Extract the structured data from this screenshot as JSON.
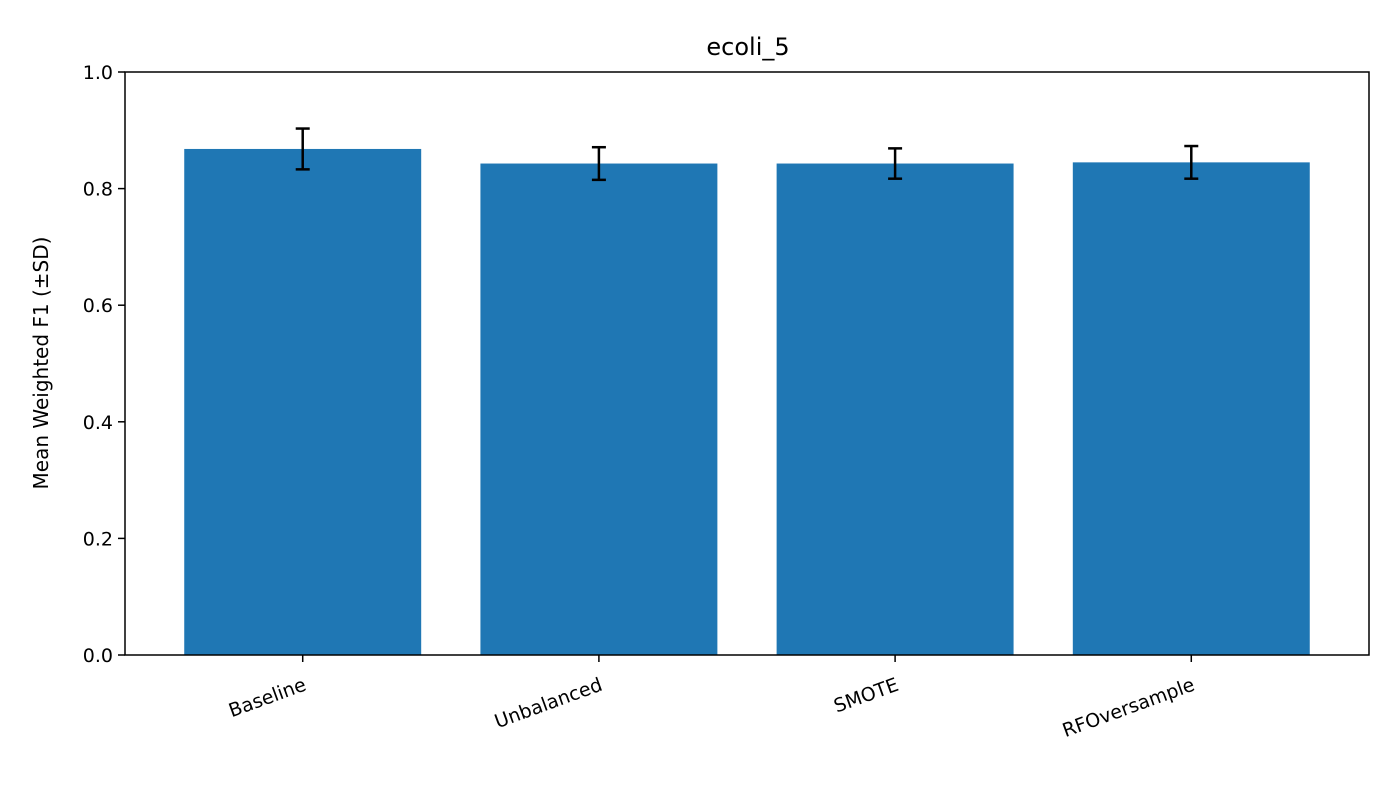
{
  "chart_data": {
    "type": "bar",
    "title": "ecoli_5",
    "xlabel": "",
    "ylabel": "Mean Weighted F1 (±SD)",
    "categories": [
      "Baseline",
      "Unbalanced",
      "SMOTE",
      "RFOversample"
    ],
    "values": [
      0.868,
      0.843,
      0.843,
      0.845
    ],
    "errors": [
      0.035,
      0.028,
      0.026,
      0.028
    ],
    "ylim": [
      0,
      1.0
    ],
    "yticks": [
      0.0,
      0.2,
      0.4,
      0.6,
      0.8,
      1.0
    ],
    "ytick_labels": [
      "0.0",
      "0.2",
      "0.4",
      "0.6",
      "0.8",
      "1.0"
    ],
    "grid": false,
    "bar_color": "#1f77b4",
    "error_color": "#000000"
  }
}
